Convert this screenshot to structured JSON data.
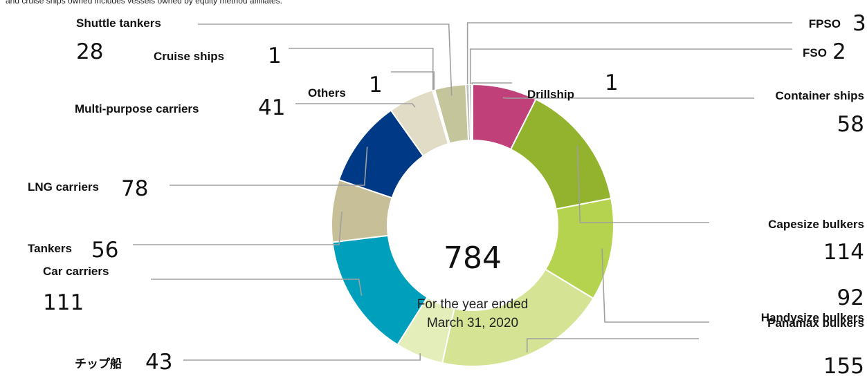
{
  "note": "and cruise ships owned includes vessels owned by equity method affiliates.",
  "chart_data": {
    "type": "pie",
    "donut": true,
    "center": {
      "total": "784",
      "line1": "For the year ended",
      "line2": "March 31, 2020"
    },
    "slices": [
      {
        "label": "Container ships",
        "value": 58,
        "color": "#c0407a"
      },
      {
        "label": "Capesize bulkers",
        "value": 114,
        "color": "#93b22d"
      },
      {
        "label": "Panamax bulkers",
        "value": 92,
        "color": "#b6d350"
      },
      {
        "label": "Handysize bulkers",
        "value": 155,
        "color": "#d4e494"
      },
      {
        "label": "チップ船",
        "value": 43,
        "color": "#e3eeba"
      },
      {
        "label": "Car carriers",
        "value": 111,
        "color": "#00a0bc"
      },
      {
        "label": "Tankers",
        "value": 56,
        "color": "#c6bf97"
      },
      {
        "label": "LNG carriers",
        "value": 78,
        "color": "#003a86"
      },
      {
        "label": "Multi-purpose carriers",
        "value": 41,
        "color": "#e1dcc5"
      },
      {
        "label": "Cruise ships",
        "value": 1,
        "color": "#efeade"
      },
      {
        "label": "Others",
        "value": 1,
        "color": "#d7d3bf"
      },
      {
        "label": "Shuttle tankers",
        "value": 28,
        "color": "#c4c59a"
      },
      {
        "label": "FPSO",
        "value": 3,
        "color": "#bdbdbd"
      },
      {
        "label": "FSO",
        "value": 2,
        "color": "#9a9a9a"
      },
      {
        "label": "Drillship",
        "value": 1,
        "color": "#6f6f6f"
      }
    ],
    "colors": {
      "leader_line": "#a0a0a0",
      "separator": "#ffffff"
    }
  }
}
